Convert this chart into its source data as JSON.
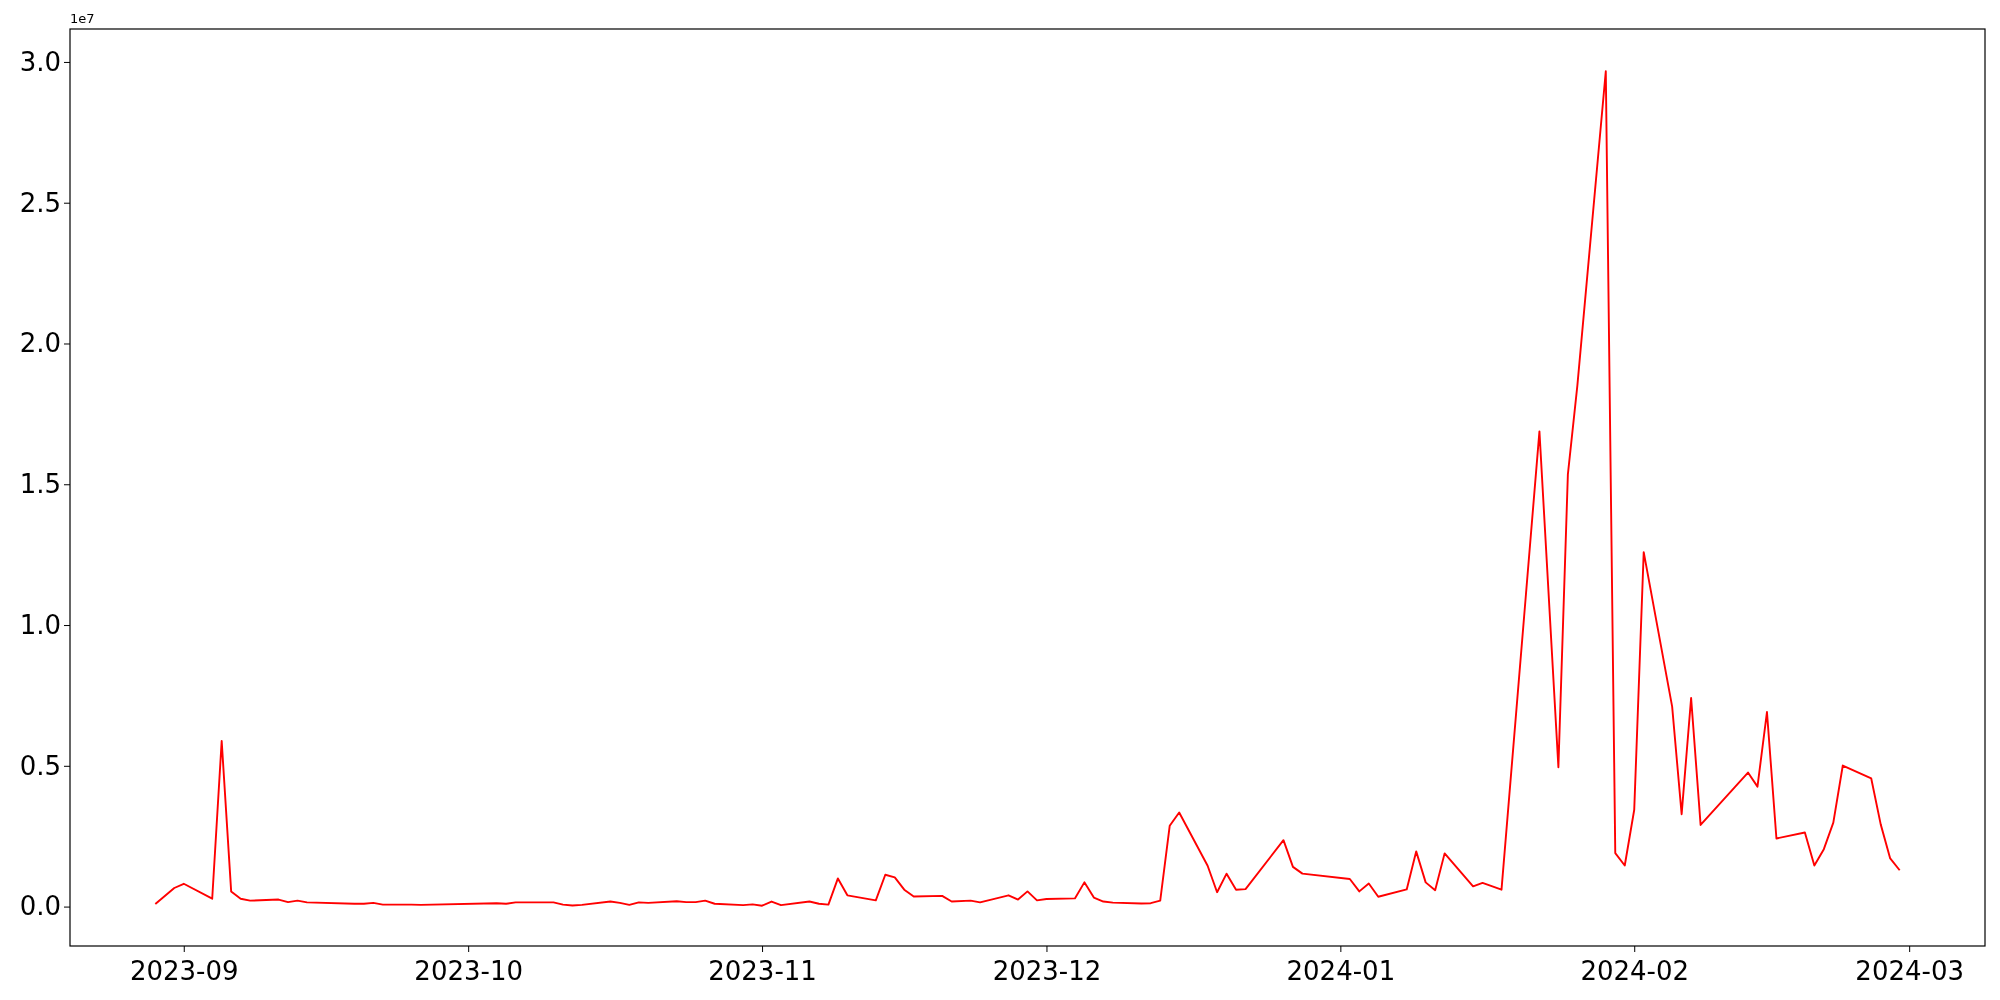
{
  "chart_data": {
    "type": "line",
    "annotations": [
      "1e7"
    ],
    "x": [
      "2023-08-29",
      "2023-08-31",
      "2023-09-01",
      "2023-09-04",
      "2023-09-05",
      "2023-09-06",
      "2023-09-07",
      "2023-09-08",
      "2023-09-11",
      "2023-09-12",
      "2023-09-13",
      "2023-09-14",
      "2023-09-19",
      "2023-09-20",
      "2023-09-21",
      "2023-09-22",
      "2023-09-25",
      "2023-09-26",
      "2023-10-04",
      "2023-10-05",
      "2023-10-06",
      "2023-10-10",
      "2023-10-11",
      "2023-10-12",
      "2023-10-13",
      "2023-10-16",
      "2023-10-17",
      "2023-10-18",
      "2023-10-19",
      "2023-10-20",
      "2023-10-23",
      "2023-10-24",
      "2023-10-25",
      "2023-10-26",
      "2023-10-27",
      "2023-10-30",
      "2023-10-31",
      "2023-11-01",
      "2023-11-02",
      "2023-11-03",
      "2023-11-06",
      "2023-11-07",
      "2023-11-08",
      "2023-11-09",
      "2023-11-10",
      "2023-11-13",
      "2023-11-14",
      "2023-11-15",
      "2023-11-16",
      "2023-11-17",
      "2023-11-20",
      "2023-11-21",
      "2023-11-23",
      "2023-11-24",
      "2023-11-27",
      "2023-11-28",
      "2023-11-29",
      "2023-11-30",
      "2023-12-01",
      "2023-12-04",
      "2023-12-05",
      "2023-12-06",
      "2023-12-07",
      "2023-12-08",
      "2023-12-11",
      "2023-12-12",
      "2023-12-13",
      "2023-12-14",
      "2023-12-15",
      "2023-12-18",
      "2023-12-19",
      "2023-12-20",
      "2023-12-21",
      "2023-12-22",
      "2023-12-26",
      "2023-12-27",
      "2023-12-28",
      "2024-01-02",
      "2024-01-03",
      "2024-01-04",
      "2024-01-05",
      "2024-01-08",
      "2024-01-09",
      "2024-01-10",
      "2024-01-11",
      "2024-01-12",
      "2024-01-15",
      "2024-01-16",
      "2024-01-18",
      "2024-01-22",
      "2024-01-24",
      "2024-01-25",
      "2024-01-26",
      "2024-01-29",
      "2024-01-30",
      "2024-01-31",
      "2024-02-01",
      "2024-02-02",
      "2024-02-05",
      "2024-02-06",
      "2024-02-07",
      "2024-02-08",
      "2024-02-13",
      "2024-02-14",
      "2024-02-15",
      "2024-02-16",
      "2024-02-19",
      "2024-02-20",
      "2024-02-21",
      "2024-02-22",
      "2024-02-23",
      "2024-02-26",
      "2024-02-27",
      "2024-02-28",
      "2024-02-29"
    ],
    "series": [
      {
        "color": "#ff0000",
        "values": [
          0.009,
          0.066,
          0.081,
          0.028,
          0.588,
          0.054,
          0.028,
          0.021,
          0.025,
          0.016,
          0.021,
          0.015,
          0.01,
          0.01,
          0.013,
          0.007,
          0.007,
          0.006,
          0.012,
          0.01,
          0.015,
          0.015,
          0.007,
          0.004,
          0.006,
          0.018,
          0.013,
          0.006,
          0.015,
          0.013,
          0.019,
          0.016,
          0.016,
          0.021,
          0.01,
          0.005,
          0.008,
          0.003,
          0.018,
          0.005,
          0.018,
          0.01,
          0.007,
          0.1,
          0.04,
          0.022,
          0.113,
          0.104,
          0.06,
          0.036,
          0.038,
          0.018,
          0.021,
          0.015,
          0.04,
          0.025,
          0.054,
          0.022,
          0.027,
          0.029,
          0.086,
          0.032,
          0.018,
          0.014,
          0.011,
          0.012,
          0.021,
          0.287,
          0.334,
          0.145,
          0.051,
          0.117,
          0.06,
          0.062,
          0.236,
          0.141,
          0.117,
          0.098,
          0.054,
          0.082,
          0.035,
          0.061,
          0.196,
          0.086,
          0.058,
          0.189,
          0.072,
          0.084,
          0.06,
          1.688,
          0.495,
          1.535,
          1.85,
          2.967,
          0.19,
          0.146,
          0.344,
          1.259,
          0.71,
          0.328,
          0.741,
          0.29,
          0.476,
          0.426,
          0.691,
          0.242,
          0.263,
          0.146,
          0.204,
          0.298,
          0.501,
          0.455,
          0.292,
          0.171,
          0.129
        ]
      }
    ],
    "xlim": [
      "2023-08-20",
      "2024-03-09"
    ],
    "xticks": [
      {
        "value": "2023-09-01",
        "label": "2023-09"
      },
      {
        "value": "2023-10-01",
        "label": "2023-10"
      },
      {
        "value": "2023-11-01",
        "label": "2023-11"
      },
      {
        "value": "2023-12-01",
        "label": "2023-12"
      },
      {
        "value": "2024-01-01",
        "label": "2024-01"
      },
      {
        "value": "2024-02-01",
        "label": "2024-02"
      },
      {
        "value": "2024-03-01",
        "label": "2024-03"
      }
    ],
    "ylim": [
      -0.14,
      3.117
    ],
    "yticks": [
      {
        "value": 0,
        "label": "0.0"
      },
      0.5,
      {
        "value": 1,
        "label": "1.0"
      },
      1.5,
      {
        "value": 2,
        "label": "2.0"
      },
      2.5,
      {
        "value": 3,
        "label": "3.0"
      }
    ],
    "marker": "none",
    "line_style": "solid",
    "grid": false
  }
}
